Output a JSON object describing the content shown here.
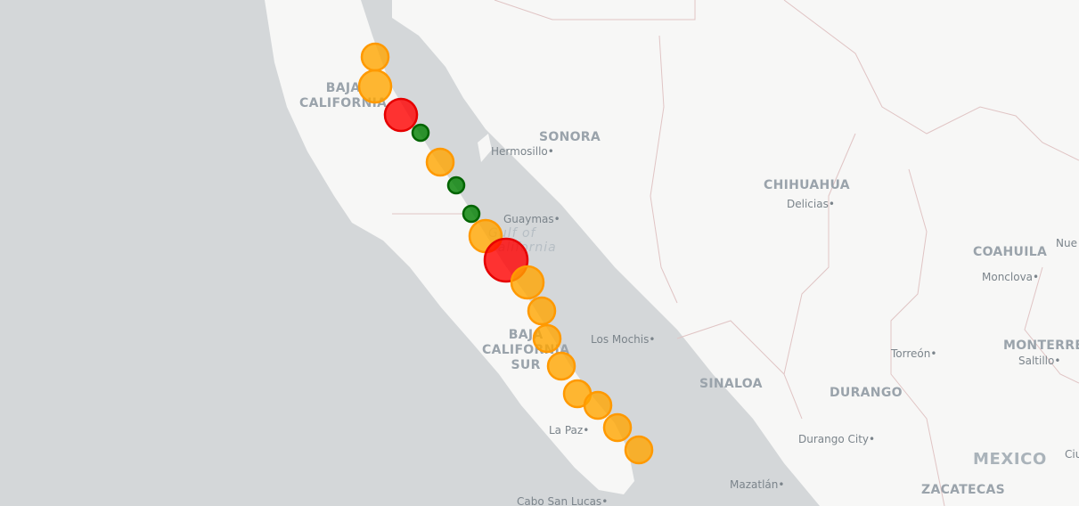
{
  "map": {
    "colors": {
      "ocean": "#d4d7d9",
      "land": "#f7f7f6",
      "state_border": "#e0c4c4",
      "state_label": "#9aa3ab",
      "city_label": "#7b848b",
      "marker_orange": "#ffa500",
      "marker_red": "#ff0000",
      "marker_green": "#008000"
    },
    "labels": {
      "baja_california": "BAJA\nCALIFORNIA",
      "sonora": "SONORA",
      "chihuahua": "CHIHUAHUA",
      "coahuila": "COAHUILA",
      "baja_california_sur": "BAJA\nCALIFORNIA\nSUR",
      "sinaloa": "SINALOA",
      "durango": "DURANGO",
      "monterrey": "MONTERREY",
      "mexico": "MEXICO",
      "zacatecas": "ZACATECAS",
      "gulf": "Gulf of\nCalifornia"
    },
    "cities": [
      {
        "id": "hermosillo",
        "name": "Hermosillo"
      },
      {
        "id": "delicias",
        "name": "Delicias"
      },
      {
        "id": "guaymas",
        "name": "Guaymas"
      },
      {
        "id": "monclova",
        "name": "Monclova"
      },
      {
        "id": "nuevo",
        "name": "Nue"
      },
      {
        "id": "los-mochis",
        "name": "Los Mochis"
      },
      {
        "id": "torreon",
        "name": "Torreón"
      },
      {
        "id": "saltillo",
        "name": "Saltillo"
      },
      {
        "id": "la-paz",
        "name": "La Paz"
      },
      {
        "id": "durango-city",
        "name": "Durango City"
      },
      {
        "id": "cabo-san-lucas",
        "name": "Cabo San Lucas"
      },
      {
        "id": "mazatlan",
        "name": "Mazatlán"
      },
      {
        "id": "cuidad",
        "name": "Ciu"
      }
    ],
    "markers": [
      {
        "id": "m1",
        "color": "orange",
        "size": "medium"
      },
      {
        "id": "m2",
        "color": "orange",
        "size": "large"
      },
      {
        "id": "m3",
        "color": "red",
        "size": "large"
      },
      {
        "id": "m4",
        "color": "green",
        "size": "small"
      },
      {
        "id": "m5",
        "color": "orange",
        "size": "medium"
      },
      {
        "id": "m6",
        "color": "green",
        "size": "small"
      },
      {
        "id": "m7",
        "color": "green",
        "size": "small"
      },
      {
        "id": "m8",
        "color": "orange",
        "size": "large"
      },
      {
        "id": "m9",
        "color": "red",
        "size": "xlarge"
      },
      {
        "id": "m10",
        "color": "orange",
        "size": "large"
      },
      {
        "id": "m11",
        "color": "orange",
        "size": "medium"
      },
      {
        "id": "m12",
        "color": "orange",
        "size": "medium"
      },
      {
        "id": "m13",
        "color": "orange",
        "size": "medium"
      },
      {
        "id": "m14",
        "color": "orange",
        "size": "medium"
      },
      {
        "id": "m15",
        "color": "orange",
        "size": "medium"
      },
      {
        "id": "m16",
        "color": "orange",
        "size": "medium"
      },
      {
        "id": "m17",
        "color": "orange",
        "size": "medium"
      }
    ]
  }
}
